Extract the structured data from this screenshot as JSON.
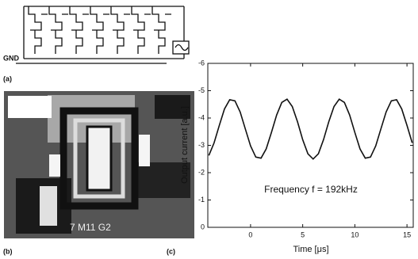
{
  "panels": {
    "a": "(a)",
    "b": "(b)",
    "c": "(c)"
  },
  "circuit": {
    "ground": "GND"
  },
  "chip": {
    "marking": "7 M11 G2"
  },
  "chart_data": {
    "type": "line",
    "ylabel": "Output current [a.u.]",
    "xlabel": "Time [μs]",
    "annotation": "Frequency f = 192kHz",
    "color": "#111111",
    "xlim": [
      -4.1,
      15.6
    ],
    "xticks": [
      0,
      5,
      10,
      15
    ],
    "ylim": [
      0,
      -6
    ],
    "yticks": [
      -6,
      -5,
      -4,
      -3,
      -2,
      -1,
      0
    ],
    "x": [
      -4,
      -3.5,
      -3,
      -2.5,
      -2,
      -1.5,
      -1,
      -0.5,
      0,
      0.5,
      1,
      1.5,
      2,
      2.5,
      3,
      3.5,
      4,
      4.5,
      5,
      5.5,
      6,
      6.5,
      7,
      7.5,
      8,
      8.5,
      9,
      9.5,
      10,
      10.5,
      11,
      11.5,
      12,
      12.5,
      13,
      13.5,
      14,
      14.5,
      15,
      15.5
    ],
    "values": [
      -2.63,
      -3.09,
      -3.73,
      -4.33,
      -4.67,
      -4.63,
      -4.22,
      -3.6,
      -2.98,
      -2.57,
      -2.53,
      -2.87,
      -3.47,
      -4.11,
      -4.57,
      -4.69,
      -4.42,
      -3.86,
      -3.21,
      -2.69,
      -2.5,
      -2.69,
      -3.21,
      -3.86,
      -4.42,
      -4.69,
      -4.57,
      -4.11,
      -3.47,
      -2.87,
      -2.53,
      -2.57,
      -2.98,
      -3.6,
      -4.22,
      -4.63,
      -4.67,
      -4.33,
      -3.73,
      -3.09
    ]
  }
}
